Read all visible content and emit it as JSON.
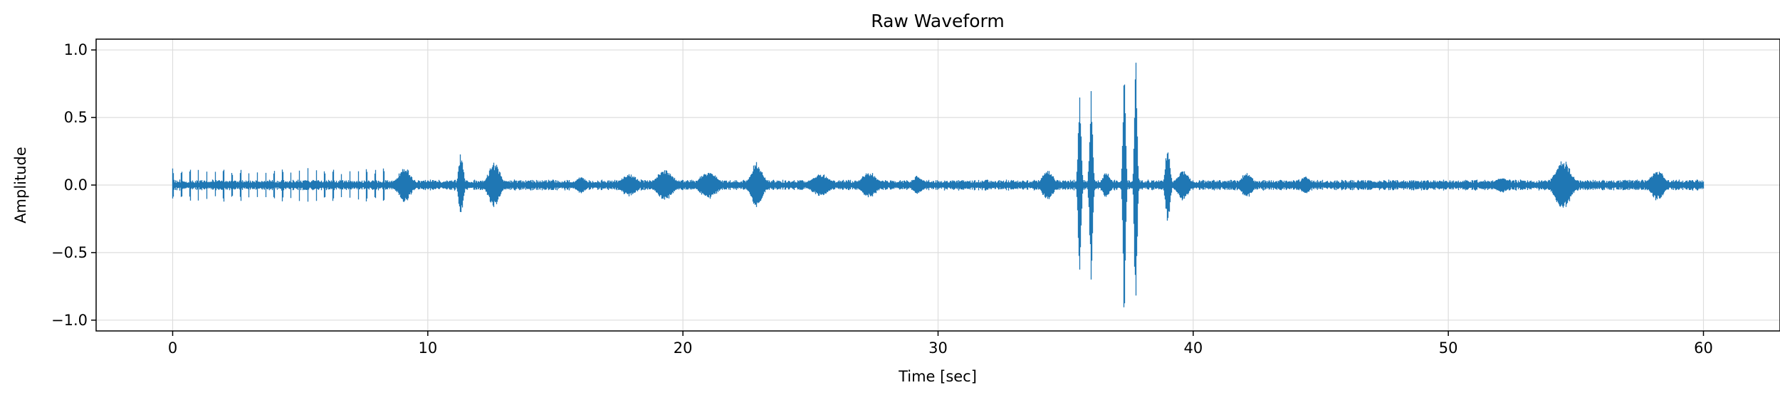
{
  "chart_data": {
    "type": "line",
    "title": "Raw Waveform",
    "xlabel": "Time [sec]",
    "ylabel": "Amplitude",
    "xlim": [
      -3,
      63
    ],
    "ylim": [
      -1.08,
      1.08
    ],
    "grid": true,
    "line_color": "#1f77b4",
    "grid_color": "#dddddd",
    "x_ticks": [
      0,
      10,
      20,
      30,
      40,
      50,
      60
    ],
    "y_ticks": [
      1.0,
      0.5,
      0.0,
      -0.5,
      -1.0
    ],
    "x_tick_labels": [
      "0",
      "10",
      "20",
      "30",
      "40",
      "50",
      "60"
    ],
    "y_tick_labels": [
      "1.0",
      "0.5",
      "0.0",
      "−0.5",
      "−1.0"
    ],
    "series": [
      {
        "x_start": 0,
        "x_end": 60,
        "baseline_envelope": 0.03,
        "periodic_clicks": {
          "x_start": 0.0,
          "x_end": 8.4,
          "interval": 0.33,
          "amplitude": 0.13
        },
        "bursts": [
          {
            "x": 9.1,
            "width": 0.35,
            "amplitude": 0.13
          },
          {
            "x": 11.3,
            "width": 0.12,
            "amplitude": 0.26
          },
          {
            "x": 12.6,
            "width": 0.3,
            "amplitude": 0.18
          },
          {
            "x": 16.0,
            "width": 0.25,
            "amplitude": 0.07
          },
          {
            "x": 17.9,
            "width": 0.4,
            "amplitude": 0.09
          },
          {
            "x": 19.3,
            "width": 0.45,
            "amplitude": 0.12
          },
          {
            "x": 21.0,
            "width": 0.45,
            "amplitude": 0.11
          },
          {
            "x": 22.9,
            "width": 0.3,
            "amplitude": 0.18
          },
          {
            "x": 25.4,
            "width": 0.45,
            "amplitude": 0.09
          },
          {
            "x": 27.3,
            "width": 0.4,
            "amplitude": 0.1
          },
          {
            "x": 29.2,
            "width": 0.25,
            "amplitude": 0.08
          },
          {
            "x": 34.3,
            "width": 0.3,
            "amplitude": 0.12
          },
          {
            "x": 35.55,
            "width": 0.08,
            "amplitude": 0.75
          },
          {
            "x": 36.0,
            "width": 0.08,
            "amplitude": 0.72
          },
          {
            "x": 36.6,
            "width": 0.2,
            "amplitude": 0.1
          },
          {
            "x": 37.3,
            "width": 0.07,
            "amplitude": 1.0
          },
          {
            "x": 37.75,
            "width": 0.07,
            "amplitude": 1.0
          },
          {
            "x": 39.0,
            "width": 0.12,
            "amplitude": 0.3
          },
          {
            "x": 39.6,
            "width": 0.3,
            "amplitude": 0.12
          },
          {
            "x": 42.1,
            "width": 0.3,
            "amplitude": 0.1
          },
          {
            "x": 44.4,
            "width": 0.25,
            "amplitude": 0.07
          },
          {
            "x": 52.1,
            "width": 0.35,
            "amplitude": 0.06
          },
          {
            "x": 54.5,
            "width": 0.4,
            "amplitude": 0.2
          },
          {
            "x": 58.2,
            "width": 0.35,
            "amplitude": 0.12
          }
        ]
      }
    ]
  }
}
